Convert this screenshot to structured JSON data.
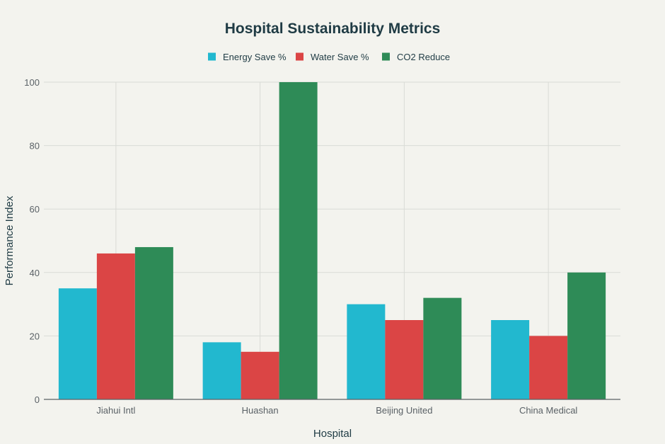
{
  "chart_data": {
    "type": "bar",
    "title": "Hospital Sustainability Metrics",
    "xlabel": "Hospital",
    "ylabel": "Performance Index",
    "categories": [
      "Jiahui Intl",
      "Huashan",
      "Beijing United",
      "China Medical"
    ],
    "series": [
      {
        "name": "Energy Save %",
        "color": "#22b8cf",
        "values": [
          35,
          18,
          30,
          25
        ]
      },
      {
        "name": "Water Save %",
        "color": "#db4545",
        "values": [
          46,
          15,
          25,
          20
        ]
      },
      {
        "name": "CO2 Reduce",
        "color": "#2e8b57",
        "values": [
          48,
          100,
          32,
          40
        ]
      }
    ],
    "ylim": [
      0,
      100
    ],
    "yticks": [
      0,
      20,
      40,
      60,
      80,
      100
    ],
    "grid": true,
    "legend_position": "top-center"
  }
}
